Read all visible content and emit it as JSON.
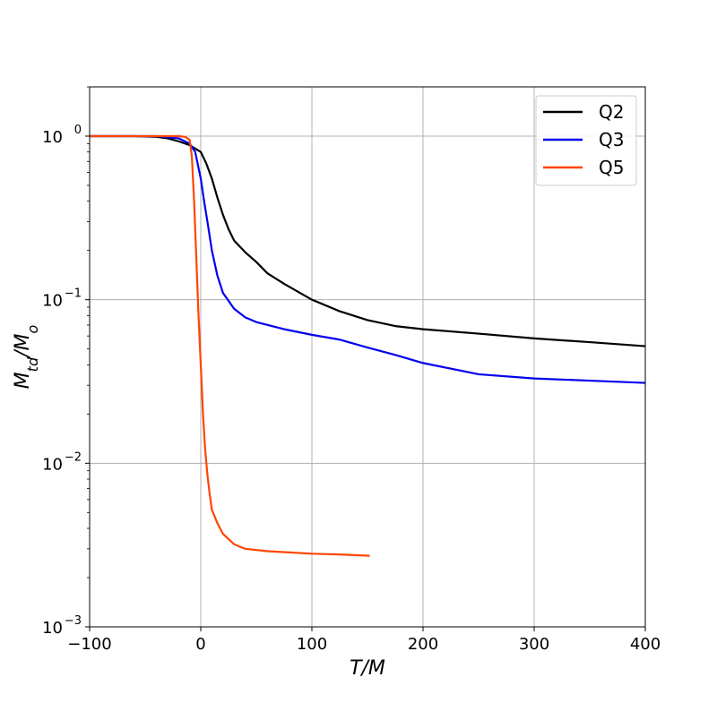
{
  "chart_data": {
    "type": "line",
    "xlabel": "T/M",
    "ylabel": "M_td/M_o",
    "xlim": [
      -100,
      400
    ],
    "ylim": [
      0.001,
      2.0
    ],
    "yscale": "log",
    "grid": true,
    "legend_position": "top-right",
    "x_ticks": [
      -100,
      0,
      100,
      200,
      300,
      400
    ],
    "x_tick_labels": [
      "−100",
      "0",
      "100",
      "200",
      "300",
      "400"
    ],
    "y_ticks": [
      0.001,
      0.01,
      0.1,
      1
    ],
    "y_tick_labels": [
      {
        "base": "10",
        "exp": "−3"
      },
      {
        "base": "10",
        "exp": "−2"
      },
      {
        "base": "10",
        "exp": "−1"
      },
      {
        "base": "10",
        "exp": "0"
      }
    ],
    "series": [
      {
        "name": "Q2",
        "color": "#000000",
        "x": [
          -100,
          -60,
          -40,
          -30,
          -20,
          -10,
          0,
          5,
          10,
          15,
          20,
          25,
          30,
          40,
          50,
          60,
          75,
          100,
          125,
          150,
          175,
          200,
          250,
          300,
          350,
          400
        ],
        "y": [
          1.0,
          1.0,
          0.99,
          0.97,
          0.93,
          0.88,
          0.8,
          0.68,
          0.55,
          0.42,
          0.33,
          0.27,
          0.23,
          0.195,
          0.17,
          0.145,
          0.125,
          0.1,
          0.085,
          0.075,
          0.069,
          0.066,
          0.062,
          0.058,
          0.055,
          0.052
        ]
      },
      {
        "name": "Q3",
        "color": "#0000ee",
        "x": [
          -100,
          -40,
          -20,
          -10,
          -5,
          0,
          3,
          6,
          10,
          15,
          20,
          30,
          40,
          50,
          75,
          100,
          125,
          150,
          175,
          200,
          250,
          300,
          350,
          400
        ],
        "y": [
          1.0,
          1.0,
          0.97,
          0.9,
          0.8,
          0.55,
          0.4,
          0.3,
          0.2,
          0.14,
          0.11,
          0.088,
          0.078,
          0.073,
          0.066,
          0.061,
          0.057,
          0.051,
          0.046,
          0.041,
          0.035,
          0.033,
          0.032,
          0.031
        ]
      },
      {
        "name": "Q5",
        "color": "#ff4500",
        "x": [
          -100,
          -20,
          -14,
          -10,
          -8,
          -6,
          -4,
          -2,
          0,
          2,
          4,
          6,
          8,
          10,
          15,
          20,
          30,
          40,
          60,
          80,
          100,
          125,
          152
        ],
        "y": [
          1.0,
          1.0,
          0.99,
          0.95,
          0.75,
          0.4,
          0.18,
          0.08,
          0.04,
          0.02,
          0.012,
          0.0085,
          0.0065,
          0.0052,
          0.0043,
          0.0037,
          0.0032,
          0.003,
          0.0029,
          0.00285,
          0.0028,
          0.00277,
          0.00272
        ]
      }
    ]
  }
}
